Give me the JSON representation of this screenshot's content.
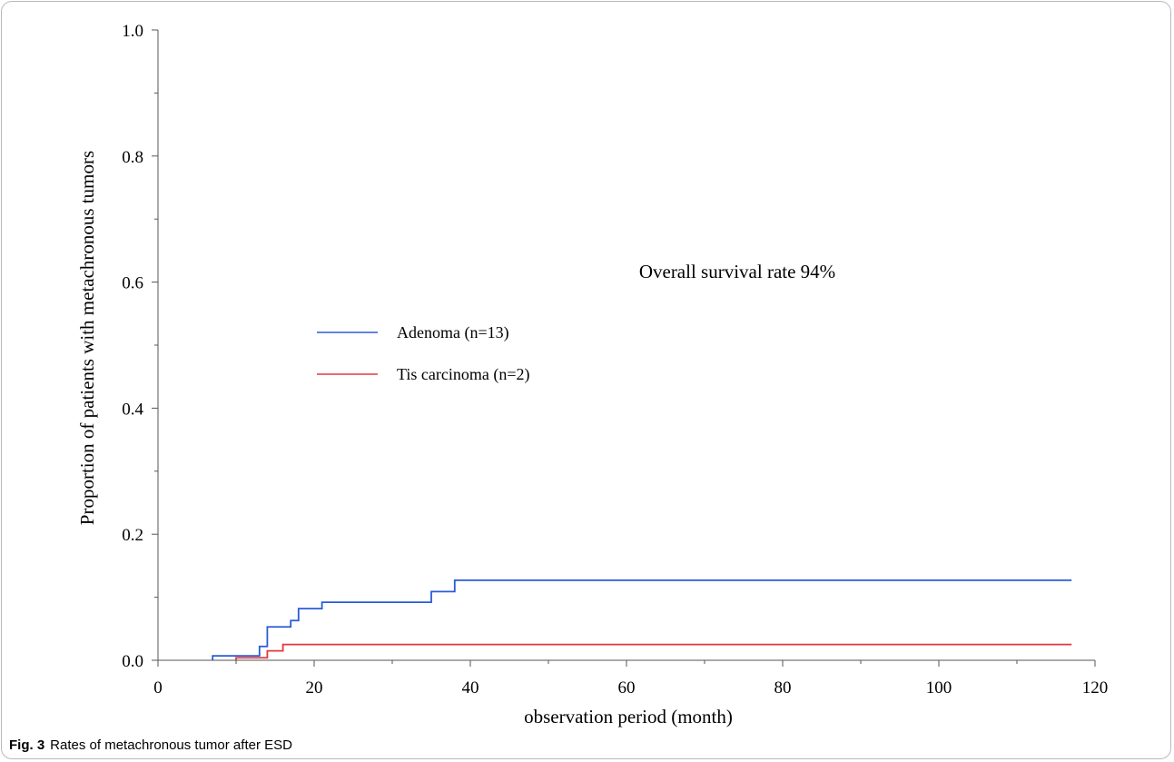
{
  "figure_label": "Fig. 3",
  "caption": "Rates of metachronous tumor after ESD",
  "colors": {
    "adenoma": "#2a5bd7",
    "tis": "#e0383e",
    "axis": "#555555"
  },
  "chart_data": {
    "type": "line",
    "step": true,
    "xlabel": "observation period (month)",
    "ylabel": "Proportion of patients with metachronous tumors",
    "annotation": "Overall survival rate 94%",
    "xlim": [
      0,
      120
    ],
    "ylim": [
      0,
      1.0
    ],
    "xticks": [
      0,
      20,
      40,
      60,
      80,
      100,
      120
    ],
    "xtick_labels": [
      "0",
      "20",
      "40",
      "60",
      "80",
      "100",
      "120"
    ],
    "yticks": [
      0.0,
      0.2,
      0.4,
      0.6,
      0.8,
      1.0
    ],
    "ytick_labels": [
      "0.0",
      "0.2",
      "0.4",
      "0.6",
      "0.8",
      "1.0"
    ],
    "legend_position": "center-left",
    "series": [
      {
        "name": "Adenoma (n=13)",
        "color": "#2a5bd7",
        "x": [
          7,
          13,
          14,
          17,
          18,
          21,
          35,
          38,
          117
        ],
        "y": [
          0.007,
          0.022,
          0.053,
          0.063,
          0.082,
          0.092,
          0.109,
          0.127,
          0.127
        ]
      },
      {
        "name": "Tis carcinoma (n=2)",
        "color": "#e0383e",
        "x": [
          10,
          14,
          16,
          117
        ],
        "y": [
          0.004,
          0.015,
          0.025,
          0.025
        ]
      }
    ]
  }
}
